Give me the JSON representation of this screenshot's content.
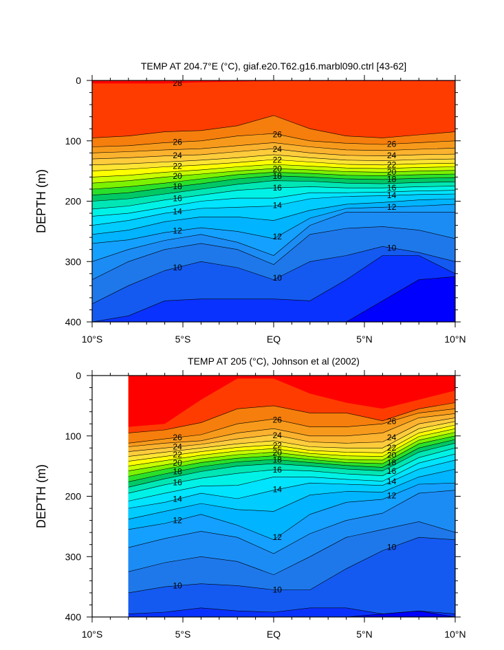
{
  "chart_data": [
    {
      "type": "contour",
      "title": "TEMP AT 204.7°E (°C), giaf.e20.T62.g16.marbl090.ctrl [43-62]",
      "ylabel": "DEPTH (m)",
      "xlabel": "",
      "xlim": [
        -10,
        10
      ],
      "ylim": [
        400,
        0
      ],
      "x_ticks": [
        -10,
        -5,
        0,
        5,
        10
      ],
      "x_tick_labels": [
        "10°S",
        "5°S",
        "EQ",
        "5°N",
        "10°N"
      ],
      "y_ticks": [
        0,
        100,
        200,
        300,
        400
      ],
      "y_tick_labels": [
        "0",
        "100",
        "200",
        "300",
        "400"
      ],
      "data_xlim": [
        -10,
        10
      ],
      "contour_interval": 1,
      "labeled_isotherms": [
        "28",
        "26",
        "24",
        "22",
        "20",
        "18",
        "16",
        "14",
        "12",
        "10"
      ],
      "isotherm_depths": {
        "x": [
          -10,
          -8,
          -6,
          -4,
          -2,
          0,
          2,
          4,
          6,
          8,
          10
        ],
        "lines": [
          {
            "t": 28,
            "depth": [
              5,
              5,
              5,
              3,
              2,
              1,
              1,
              1,
              1,
              1,
              1
            ]
          },
          {
            "t": 27,
            "depth": [
              95,
              92,
              85,
              83,
              75,
              58,
              80,
              92,
              95,
              90,
              85
            ]
          },
          {
            "t": 26,
            "depth": [
              110,
              108,
              103,
              100,
              92,
              88,
              100,
              104,
              106,
              103,
              100
            ]
          },
          {
            "t": 25,
            "depth": [
              120,
              118,
              115,
              113,
              108,
              103,
              110,
              115,
              116,
              114,
              112
            ]
          },
          {
            "t": 24,
            "depth": [
              130,
              128,
              125,
              123,
              118,
              113,
              120,
              124,
              125,
              123,
              122
            ]
          },
          {
            "t": 23,
            "depth": [
              140,
              138,
              135,
              132,
              128,
              123,
              128,
              132,
              133,
              131,
              130
            ]
          },
          {
            "t": 22,
            "depth": [
              150,
              147,
              143,
              140,
              136,
              131,
              135,
              139,
              140,
              138,
              137
            ]
          },
          {
            "t": 21,
            "depth": [
              160,
              157,
              152,
              148,
              143,
              139,
              142,
              145,
              146,
              144,
              143
            ]
          },
          {
            "t": 20,
            "depth": [
              170,
              166,
              160,
              155,
              150,
              146,
              148,
              151,
              152,
              150,
              149
            ]
          },
          {
            "t": 19,
            "depth": [
              180,
              176,
              170,
              163,
              156,
              152,
              154,
              157,
              158,
              156,
              155
            ]
          },
          {
            "t": 18,
            "depth": [
              190,
              186,
              178,
              171,
              163,
              158,
              160,
              163,
              164,
              162,
              161
            ]
          },
          {
            "t": 17,
            "depth": [
              200,
              196,
              188,
              180,
              172,
              166,
              167,
              170,
              171,
              169,
              168
            ]
          },
          {
            "t": 16,
            "depth": [
              213,
              208,
              198,
              190,
              182,
              178,
              176,
              178,
              178,
              176,
              175
            ]
          },
          {
            "t": 15,
            "depth": [
              225,
              220,
              210,
              200,
              195,
              195,
              186,
              186,
              185,
              183,
              182
            ]
          },
          {
            "t": 14,
            "depth": [
              240,
              232,
              220,
              212,
              210,
              208,
              196,
              192,
              191,
              189,
              188
            ]
          },
          {
            "t": 13,
            "depth": [
              255,
              248,
              234,
              226,
              226,
              232,
              215,
              205,
              202,
              198,
              196
            ]
          },
          {
            "t": 12,
            "depth": [
              270,
              264,
              252,
              244,
              250,
              262,
              228,
              212,
              210,
              208,
              205
            ]
          },
          {
            "t": 11,
            "depth": [
              300,
              280,
              265,
              255,
              268,
              290,
              240,
              218,
              218,
              218,
              218
            ]
          },
          {
            "t": 10.5,
            "depth": [
              330,
              300,
              280,
              270,
              280,
              305,
              255,
              245,
              242,
              248,
              262
            ]
          },
          {
            "t": 10,
            "depth": [
              370,
              340,
              315,
              300,
              310,
              330,
              300,
              290,
              275,
              285,
              300
            ]
          },
          {
            "t": 9.5,
            "depth": [
              400,
              390,
              365,
              362,
              362,
              362,
              365,
              330,
              290,
              290,
              320
            ]
          },
          {
            "t": 9,
            "depth": [
              400,
              400,
              400,
              400,
              400,
              400,
              400,
              400,
              365,
              330,
              325
            ]
          }
        ]
      }
    },
    {
      "type": "contour",
      "title": "TEMP AT 205 (°C), Johnson et al (2002)",
      "ylabel": "DEPTH (m)",
      "xlabel": "",
      "xlim": [
        -10,
        10
      ],
      "ylim": [
        400,
        0
      ],
      "x_ticks": [
        -10,
        -5,
        0,
        5,
        10
      ],
      "x_tick_labels": [
        "10°S",
        "5°S",
        "EQ",
        "5°N",
        "10°N"
      ],
      "y_ticks": [
        0,
        100,
        200,
        300,
        400
      ],
      "y_tick_labels": [
        "0",
        "100",
        "200",
        "300",
        "400"
      ],
      "data_xlim": [
        -8,
        10
      ],
      "contour_interval": 1,
      "labeled_isotherms": [
        "26",
        "24",
        "22",
        "20",
        "18",
        "16",
        "14",
        "12",
        "10"
      ],
      "isotherm_depths": {
        "x": [
          -8,
          -6,
          -4,
          -2,
          0,
          2,
          4,
          6,
          8,
          10
        ],
        "lines": [
          {
            "t": 28,
            "depth": [
              85,
              80,
              40,
              5,
              5,
              30,
              45,
              55,
              40,
              25
            ]
          },
          {
            "t": 27,
            "depth": [
              95,
              90,
              78,
              55,
              50,
              62,
              62,
              75,
              55,
              45
            ]
          },
          {
            "t": 26,
            "depth": [
              112,
              105,
              98,
              80,
              72,
              85,
              85,
              80,
              62,
              55
            ]
          },
          {
            "t": 25,
            "depth": [
              118,
              112,
              108,
              95,
              88,
              100,
              100,
              95,
              70,
              63
            ]
          },
          {
            "t": 24,
            "depth": [
              126,
              120,
              114,
              105,
              98,
              110,
              112,
              110,
              80,
              70
            ]
          },
          {
            "t": 23,
            "depth": [
              134,
              127,
              120,
              113,
              108,
              118,
              120,
              120,
              88,
              76
            ]
          },
          {
            "t": 22,
            "depth": [
              142,
              134,
              126,
              119,
              115,
              124,
              127,
              128,
              95,
              82
            ]
          },
          {
            "t": 21,
            "depth": [
              150,
              141,
              132,
              125,
              121,
              129,
              133,
              134,
              101,
              88
            ]
          },
          {
            "t": 20,
            "depth": [
              158,
              148,
              138,
              131,
              127,
              134,
              139,
              140,
              107,
              94
            ]
          },
          {
            "t": 19,
            "depth": [
              167,
              155,
              144,
              137,
              133,
              139,
              144,
              146,
              113,
              100
            ]
          },
          {
            "t": 18,
            "depth": [
              176,
              163,
              151,
              143,
              139,
              144,
              149,
              152,
              120,
              106
            ]
          },
          {
            "t": 17,
            "depth": [
              185,
              171,
              159,
              150,
              146,
              150,
              155,
              158,
              127,
              112
            ]
          },
          {
            "t": 16,
            "depth": [
              195,
              181,
              170,
              162,
              156,
              158,
              163,
              166,
              136,
              120
            ]
          },
          {
            "t": 15,
            "depth": [
              208,
              195,
              183,
              182,
              168,
              168,
              172,
              175,
              145,
              130
            ]
          },
          {
            "t": 14,
            "depth": [
              220,
              210,
              195,
              204,
              190,
              178,
              180,
              182,
              155,
              140
            ]
          },
          {
            "t": 13,
            "depth": [
              238,
              225,
              212,
              222,
              225,
              198,
              192,
              193,
              168,
              155
            ]
          },
          {
            "t": 12,
            "depth": [
              255,
              245,
              230,
              248,
              272,
              230,
              210,
              205,
              180,
              178
            ]
          },
          {
            "t": 11,
            "depth": [
              285,
              270,
              258,
              268,
              295,
              262,
              240,
              228,
              195,
              190
            ]
          },
          {
            "t": 10.5,
            "depth": [
              325,
              310,
              300,
              308,
              330,
              300,
              268,
              255,
              242,
              260
            ]
          },
          {
            "t": 10,
            "depth": [
              360,
              350,
              345,
              348,
              355,
              355,
              320,
              290,
              268,
              272
            ]
          },
          {
            "t": 9.5,
            "depth": [
              395,
              392,
              385,
              390,
              392,
              385,
              385,
              395,
              390,
              395
            ]
          },
          {
            "t": 9,
            "depth": [
              400,
              400,
              400,
              400,
              400,
              400,
              400,
              395,
              390,
              400
            ]
          }
        ]
      }
    }
  ],
  "colors": {
    "t28": "#ff0000",
    "t27": "#ff3c00",
    "t26": "#f57e0c",
    "t25": "#f79a1b",
    "t24": "#fbb22e",
    "t23": "#ffcc3c",
    "t22": "#ffe433",
    "t21": "#ffff00",
    "t20": "#c8ff00",
    "t19": "#7cf200",
    "t18": "#2ae02a",
    "t17": "#00c864",
    "t16": "#00e6b4",
    "t15": "#00f2e6",
    "t14": "#00e4ff",
    "t13": "#00ccff",
    "t12": "#00b4ff",
    "t11": "#14a0ff",
    "t10_5": "#1c8cf5",
    "t10": "#1e78ea",
    "t9_5": "#145af0",
    "t9": "#0a32ff",
    "t8": "#0000ff"
  }
}
